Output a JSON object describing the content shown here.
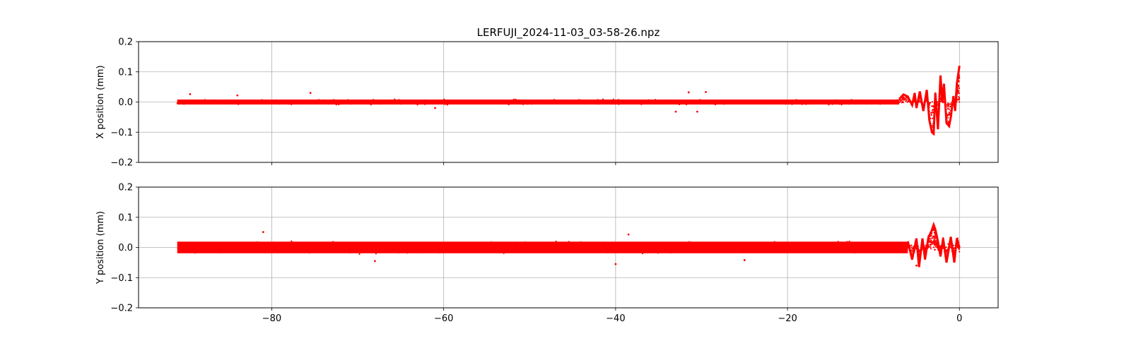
{
  "chart_data": {
    "type": "scatter",
    "title": "LERFUJI_2024-11-03_03-58-26.npz",
    "xlabel": "",
    "xlim": [
      -95.5,
      4.5
    ],
    "xticks": [
      -80,
      -60,
      -40,
      -20,
      0
    ],
    "x_tick_labels": [
      "−80",
      "−60",
      "−40",
      "−20",
      "0"
    ],
    "grid": true,
    "marker_color": "#ff0000",
    "panels": [
      {
        "ylabel": "X position (mm)",
        "ylim": [
          -0.2,
          0.2
        ],
        "yticks": [
          -0.2,
          -0.1,
          0.0,
          0.1,
          0.2
        ],
        "y_tick_labels": [
          "−0.2",
          "−0.1",
          "0.0",
          "0.1",
          "0.2"
        ],
        "series": [
          {
            "x_range": [
              -91,
              0
            ],
            "baseline_band": [
              -0.015,
              0.015
            ],
            "outliers": [
              [
                -89.5,
                0.026
              ],
              [
                -75.5,
                0.03
              ],
              [
                -31.5,
                0.032
              ],
              [
                -29.5,
                0.033
              ],
              [
                -33,
                -0.032
              ],
              [
                -30.5,
                -0.032
              ],
              [
                -61,
                -0.02
              ],
              [
                -84,
                0.022
              ]
            ],
            "end_trace": [
              [
                -7,
                0.01
              ],
              [
                -6.5,
                0.025
              ],
              [
                -6,
                0.018
              ],
              [
                -5.5,
                -0.01
              ],
              [
                -5.2,
                0.03
              ],
              [
                -5.0,
                -0.02
              ],
              [
                -4.6,
                0.035
              ],
              [
                -4.2,
                -0.03
              ],
              [
                -3.8,
                0.04
              ],
              [
                -3.5,
                -0.06
              ],
              [
                -3.2,
                -0.1
              ],
              [
                -3.0,
                -0.105
              ],
              [
                -2.8,
                0.03
              ],
              [
                -2.5,
                -0.09
              ],
              [
                -2.2,
                0.088
              ],
              [
                -2.0,
                0.0
              ],
              [
                -1.8,
                0.06
              ],
              [
                -1.5,
                -0.07
              ],
              [
                -1.2,
                -0.08
              ],
              [
                -1.0,
                -0.05
              ],
              [
                -0.7,
                0.02
              ],
              [
                -0.5,
                -0.03
              ],
              [
                -0.3,
                0.06
              ],
              [
                -0.1,
                0.1
              ],
              [
                0,
                0.12
              ]
            ]
          }
        ]
      },
      {
        "ylabel": "Y position (mm)",
        "ylim": [
          -0.2,
          0.2
        ],
        "yticks": [
          -0.2,
          -0.1,
          0.0,
          0.1,
          0.2
        ],
        "y_tick_labels": [
          "−0.2",
          "−0.1",
          "0.0",
          "0.1",
          "0.2"
        ],
        "series": [
          {
            "x_range": [
              -91,
              0
            ],
            "baseline_band": [
              -0.035,
              0.035
            ],
            "outliers": [
              [
                -81,
                0.051
              ],
              [
                -68,
                -0.045
              ],
              [
                -40,
                -0.055
              ],
              [
                -38.5,
                0.043
              ],
              [
                -25,
                -0.042
              ],
              [
                -5,
                -0.06
              ]
            ],
            "end_trace": [
              [
                -6,
                0.02
              ],
              [
                -5.5,
                -0.04
              ],
              [
                -5.0,
                0.03
              ],
              [
                -4.7,
                -0.065
              ],
              [
                -4.3,
                0.03
              ],
              [
                -4.0,
                -0.04
              ],
              [
                -3.6,
                0.035
              ],
              [
                -3.3,
                0.05
              ],
              [
                -3.0,
                0.075
              ],
              [
                -2.8,
                0.06
              ],
              [
                -2.5,
                0.02
              ],
              [
                -2.2,
                -0.03
              ],
              [
                -1.9,
                0.03
              ],
              [
                -1.5,
                -0.05
              ],
              [
                -1.0,
                0.035
              ],
              [
                -0.6,
                -0.05
              ],
              [
                -0.3,
                0.03
              ],
              [
                0,
                0.0
              ]
            ]
          }
        ]
      }
    ]
  }
}
